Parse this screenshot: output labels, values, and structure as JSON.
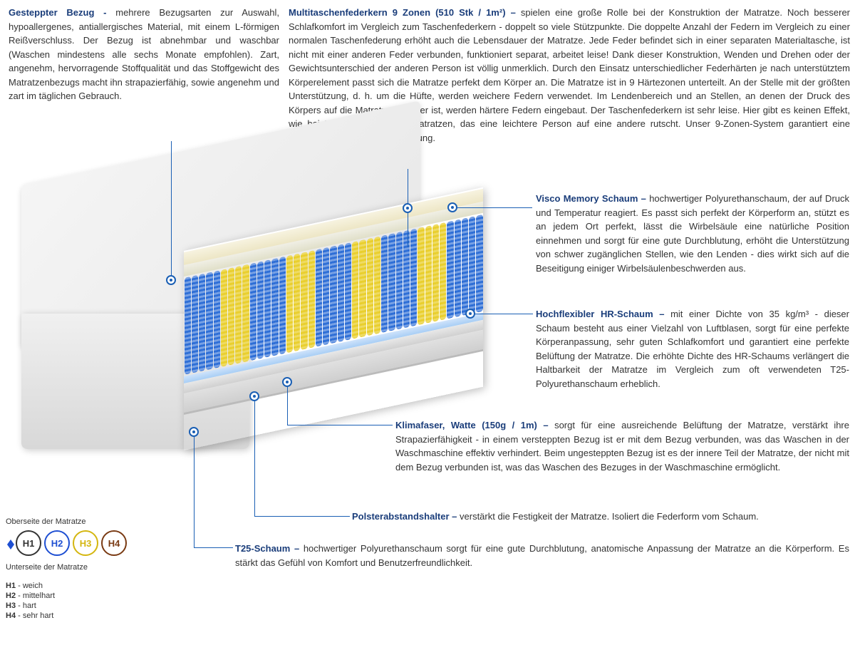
{
  "sections": {
    "bezug": {
      "title": "Gesteppter Bezug -",
      "body": "mehrere Bezugsarten zur Auswahl, hypoallergenes, antiallergisches Material, mit einem L-förmigen Reißverschluss. Der Bezug ist abnehmbar und waschbar (Waschen mindestens alle sechs Monate empfohlen). Zart, angenehm, hervorragende Stoffqualität und das Stoffgewicht des Matratzenbezugs macht ihn strapazierfähig, sowie angenehm und zart im täglichen Gebrauch."
    },
    "federkern": {
      "title": "Multitaschenfederkern 9 Zonen (510 Stk / 1m²) –",
      "body": "spielen eine große Rolle bei der Konstruktion der Matratze. Noch besserer Schlafkomfort im Vergleich zum Taschenfederkern - doppelt so viele Stützpunkte. Die doppelte Anzahl der Federn im Vergleich zu einer normalen Taschenfederung erhöht auch die Lebensdauer der Matratze. Jede Feder befindet sich in einer separaten Materialtasche, ist nicht mit einer anderen Feder verbunden, funktioniert separat, arbeitet leise! Dank dieser Konstruktion, Wenden und Drehen oder der Gewichtsunterschied der anderen Person ist völlig unmerklich. Durch den Einsatz unterschiedlicher Federhärten je nach unterstütztem Körperelement passt sich die Matratze perfekt dem Körper an. Die Matratze ist in 9 Härtezonen unterteilt. An der Stelle mit der größten Unterstützung, d. h. um die Hüfte, werden weichere Federn verwendet. Im Lendenbereich und an Stellen, an denen der Druck des Körpers auf die Matratze geringer ist, werden härtere Federn eingebaut. Der Taschenfederkern ist sehr leise. Hier gibt es keinen Effekt, wie bei Bonell (Federkern)- Matratzen, das eine leichtere Person auf eine andere rutscht. Unser 9-Zonen-System garantiert eine gesunde und komfortable Erholung."
    },
    "visco": {
      "title": "Visco Memory Schaum –",
      "body": "hochwertiger Polyurethanschaum, der auf Druck und Temperatur reagiert. Es passt sich perfekt der Körperform an, stützt es an jedem Ort perfekt, lässt die Wirbelsäule eine natürliche Position einnehmen und sorgt für eine gute Durchblutung, erhöht die Unterstützung von schwer zugänglichen Stellen, wie den Lenden - dies wirkt sich auf die Beseitigung einiger Wirbelsäulenbeschwerden aus."
    },
    "hr": {
      "title": "Hochflexibler HR-Schaum –",
      "body": "mit einer Dichte von 35 kg/m³ - dieser Schaum besteht aus einer Vielzahl von Luftblasen, sorgt für eine perfekte Körperanpassung, sehr guten Schlafkomfort und garantiert eine perfekte Belüftung der Matratze. Die erhöhte Dichte des HR-Schaums verlängert die Haltbarkeit der Matratze im Vergleich zum oft verwendeten T25-Polyurethanschaum erheblich."
    },
    "klima": {
      "title": "Klimafaser, Watte (150g / 1m) –",
      "body": "sorgt für eine ausreichende Belüftung der Matratze, verstärkt ihre Strapazierfähigkeit - in einem versteppten Bezug ist er mit dem Bezug verbunden, was das Waschen in der Waschmaschine effektiv verhindert. Beim ungesteppten Bezug ist es der innere Teil der Matratze, der nicht mit dem Bezug verbunden ist, was das Waschen des Bezuges in der Waschmaschine ermöglicht."
    },
    "polster": {
      "title": "Polsterabstandshalter –",
      "body": "verstärkt die Festigkeit der Matratze. Isoliert die Federform vom Schaum."
    },
    "t25": {
      "title": "T25-Schaum –",
      "body": "hochwertiger Polyurethanschaum sorgt für eine gute Durchblutung, anatomische Anpassung der Matratze an die Körperform. Es stärkt das Gefühl von Komfort und Benutzerfreundlichkeit."
    }
  },
  "diagram": {
    "spring_zones": [
      {
        "color": "blue",
        "count": 5
      },
      {
        "color": "yellow",
        "count": 4
      },
      {
        "color": "blue",
        "count": 5
      },
      {
        "color": "yellow",
        "count": 4
      },
      {
        "color": "blue",
        "count": 5
      },
      {
        "color": "yellow",
        "count": 4
      },
      {
        "color": "blue",
        "count": 5
      },
      {
        "color": "yellow",
        "count": 4
      },
      {
        "color": "blue",
        "count": 5
      }
    ],
    "colors": {
      "coil_blue": "#2f6fd6",
      "coil_yellow": "#e9cf2f",
      "title": "#1a3d7a",
      "leader": "#1a5fb4",
      "cover": "#e8e8e8",
      "visco": "#ede6c5",
      "hr": "#e0dfc8",
      "klima": "#a8cef5",
      "polster": "#d0d0d0",
      "t25": "#cfcfcf",
      "background": "#ffffff"
    }
  },
  "hardness": {
    "top_label": "Oberseite der Matratze",
    "bottom_label": "Unterseite der Matratze",
    "items": [
      {
        "code": "H1",
        "label": "weich",
        "color": "#333333"
      },
      {
        "code": "H2",
        "label": "mittelhart",
        "color": "#1e4fd2"
      },
      {
        "code": "H3",
        "label": "hart",
        "color": "#d4b60f"
      },
      {
        "code": "H4",
        "label": "sehr hart",
        "color": "#7a3b14"
      }
    ]
  },
  "layout": {
    "text_color": "#333333",
    "font_size_body": 13,
    "font_size_legend": 11
  }
}
